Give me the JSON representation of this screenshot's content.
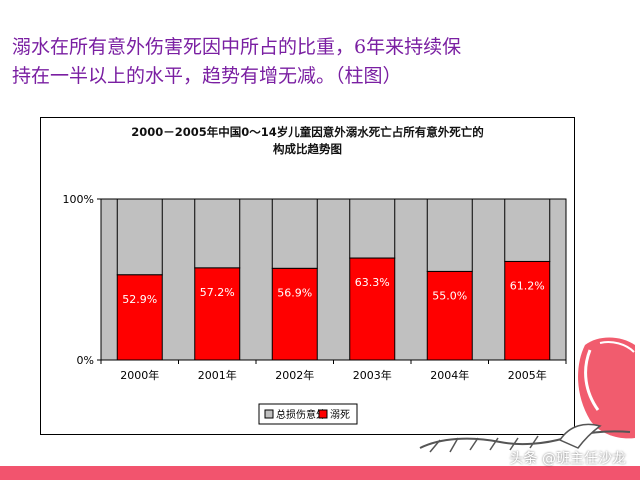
{
  "slide": {
    "line1": "溺水在所有意外伤害死因中所占的比重，6年来持续保",
    "line2": "持在一半以上的水平，趋势有增无减。（柱图）"
  },
  "watermark": "头条 @班主任沙龙",
  "colors": {
    "text_purple": "#7a1fa2",
    "plot_bg": "#c0c0c0",
    "drowning": "#ff0000",
    "other": "#c0c0c0",
    "footer": "#f2546e"
  },
  "chart_data": {
    "type": "bar",
    "stacked_percent": true,
    "title_lines": [
      "2000－2005年中国0～14岁儿童因意外溺水死亡占所有意外死亡的",
      "构成比趋势图"
    ],
    "categories": [
      "2000年",
      "2001年",
      "2002年",
      "2003年",
      "2004年",
      "2005年"
    ],
    "series": [
      {
        "name": "溺死",
        "color": "#ff0000",
        "values": [
          52.9,
          57.2,
          56.9,
          63.3,
          55.0,
          61.2
        ]
      },
      {
        "name": "总损伤意外",
        "color": "#c0c0c0",
        "values": [
          47.1,
          42.8,
          43.1,
          36.7,
          45.0,
          38.8
        ]
      }
    ],
    "data_labels": [
      "52.9%",
      "57.2%",
      "56.9%",
      "63.3%",
      "55.0%",
      "61.2%"
    ],
    "yticks": [
      "0%",
      "100%"
    ],
    "ylim": [
      0,
      100
    ],
    "legend": [
      "总损伤意外",
      "溺死"
    ],
    "legend_position": "bottom"
  }
}
